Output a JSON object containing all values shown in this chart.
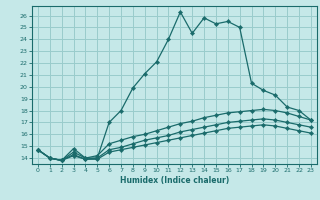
{
  "title": "",
  "xlabel": "Humidex (Indice chaleur)",
  "ylabel": "",
  "xlim": [
    -0.5,
    23.5
  ],
  "ylim": [
    13.5,
    26.8
  ],
  "xticks": [
    0,
    1,
    2,
    3,
    4,
    5,
    6,
    7,
    8,
    9,
    10,
    11,
    12,
    13,
    14,
    15,
    16,
    17,
    18,
    19,
    20,
    21,
    22,
    23
  ],
  "yticks": [
    14,
    15,
    16,
    17,
    18,
    19,
    20,
    21,
    22,
    23,
    24,
    25,
    26
  ],
  "bg_color": "#c5e8e8",
  "grid_color": "#99cccc",
  "line_color": "#1a6b6b",
  "lines": [
    {
      "x": [
        0,
        1,
        2,
        3,
        4,
        5,
        6,
        7,
        8,
        9,
        10,
        11,
        12,
        13,
        14,
        15,
        16,
        17,
        18,
        19,
        20,
        21,
        22,
        23
      ],
      "y": [
        14.7,
        14.0,
        13.8,
        14.8,
        14.0,
        14.0,
        17.0,
        18.0,
        19.9,
        21.1,
        22.1,
        24.0,
        26.3,
        24.5,
        25.8,
        25.3,
        25.5,
        25.0,
        20.3,
        19.7,
        19.3,
        18.3,
        18.0,
        17.2
      ]
    },
    {
      "x": [
        0,
        1,
        2,
        3,
        4,
        5,
        6,
        7,
        8,
        9,
        10,
        11,
        12,
        13,
        14,
        15,
        16,
        17,
        18,
        19,
        20,
        21,
        22,
        23
      ],
      "y": [
        14.7,
        14.0,
        13.8,
        14.5,
        14.0,
        14.2,
        15.2,
        15.5,
        15.8,
        16.0,
        16.3,
        16.6,
        16.9,
        17.1,
        17.4,
        17.6,
        17.8,
        17.9,
        18.0,
        18.1,
        18.0,
        17.8,
        17.5,
        17.2
      ]
    },
    {
      "x": [
        0,
        1,
        2,
        3,
        4,
        5,
        6,
        7,
        8,
        9,
        10,
        11,
        12,
        13,
        14,
        15,
        16,
        17,
        18,
        19,
        20,
        21,
        22,
        23
      ],
      "y": [
        14.7,
        14.0,
        13.8,
        14.3,
        13.9,
        14.0,
        14.7,
        14.9,
        15.2,
        15.5,
        15.7,
        15.9,
        16.2,
        16.4,
        16.6,
        16.8,
        17.0,
        17.1,
        17.2,
        17.3,
        17.2,
        17.0,
        16.8,
        16.6
      ]
    },
    {
      "x": [
        0,
        1,
        2,
        3,
        4,
        5,
        6,
        7,
        8,
        9,
        10,
        11,
        12,
        13,
        14,
        15,
        16,
        17,
        18,
        19,
        20,
        21,
        22,
        23
      ],
      "y": [
        14.7,
        14.0,
        13.8,
        14.2,
        13.9,
        13.9,
        14.5,
        14.7,
        14.9,
        15.1,
        15.3,
        15.5,
        15.7,
        15.9,
        16.1,
        16.3,
        16.5,
        16.6,
        16.7,
        16.8,
        16.7,
        16.5,
        16.3,
        16.1
      ]
    }
  ]
}
